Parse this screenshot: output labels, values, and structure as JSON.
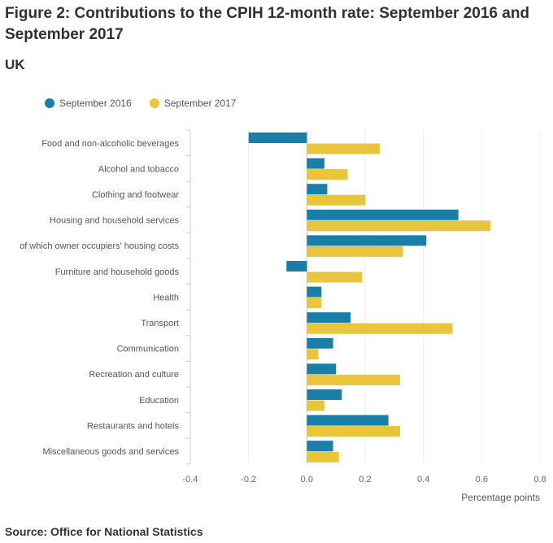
{
  "title": "Figure 2: Contributions to the CPIH 12-month rate: September 2016 and September 2017",
  "subtitle": "UK",
  "source": "Source: Office for National Statistics",
  "colors": {
    "september_2016": "#1a7fa8",
    "september_2017": "#e8c53a"
  },
  "chart_data": {
    "type": "bar",
    "orientation": "horizontal",
    "title": "Figure 2: Contributions to the CPIH 12-month rate: September 2016 and September 2017",
    "subtitle": "UK",
    "xlabel": "Percentage points",
    "ylabel": "",
    "xlim": [
      -0.4,
      0.8
    ],
    "xticks": [
      -0.4,
      -0.2,
      0.0,
      0.2,
      0.4,
      0.6,
      0.8
    ],
    "xtick_labels": [
      "-0.4",
      "-0.2",
      "0.0",
      "0.2",
      "0.4",
      "0.6",
      "0.8"
    ],
    "legend_position": "top-left",
    "categories": [
      "Food and non-alcoholic beverages",
      "Alcohol and tobacco",
      "Clothing and footwear",
      "Housing and household services",
      "of which owner occupiers' housing costs",
      "Furniture and household goods",
      "Health",
      "Transport",
      "Communication",
      "Recreation and culture",
      "Education",
      "Restaurants and hotels",
      "Miscellaneous goods and services"
    ],
    "series": [
      {
        "name": "September 2016",
        "values": [
          -0.2,
          0.06,
          0.07,
          0.52,
          0.41,
          -0.07,
          0.05,
          0.15,
          0.09,
          0.1,
          0.12,
          0.28,
          0.09
        ]
      },
      {
        "name": "September 2017",
        "values": [
          0.25,
          0.14,
          0.2,
          0.63,
          0.33,
          0.19,
          0.05,
          0.5,
          0.04,
          0.32,
          0.06,
          0.32,
          0.11
        ]
      }
    ]
  }
}
